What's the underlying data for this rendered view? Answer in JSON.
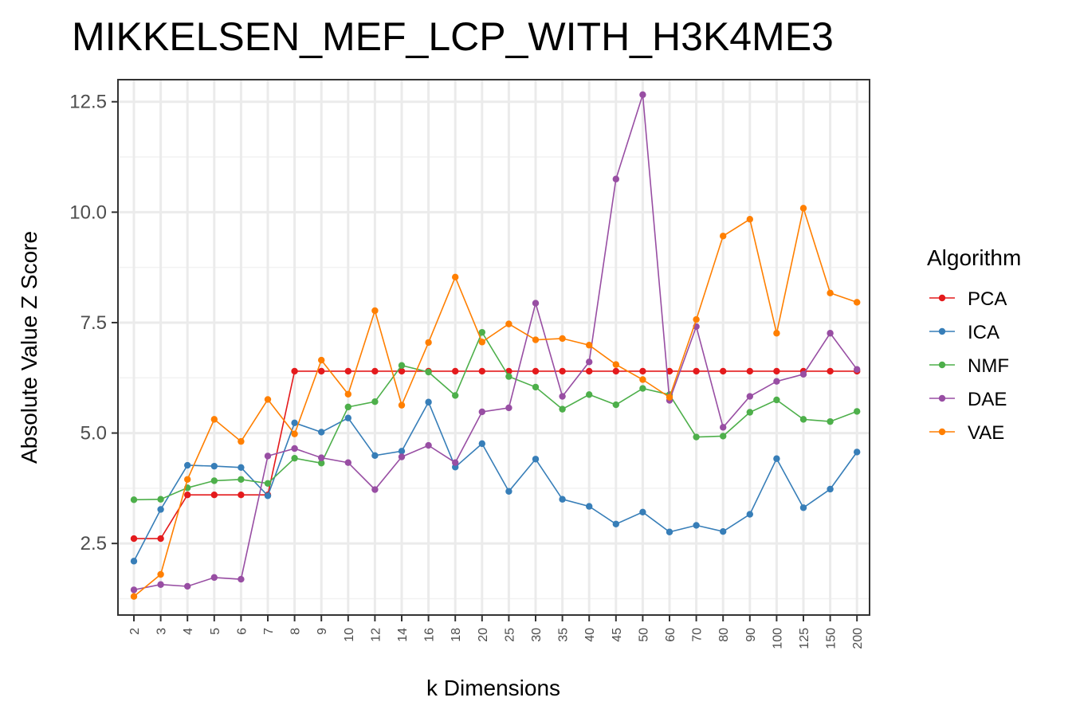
{
  "chart_data": {
    "type": "line",
    "title": "MIKKELSEN_MEF_LCP_WITH_H3K4ME3",
    "xlabel": "k Dimensions",
    "ylabel": "Absolute Value Z Score",
    "categories": [
      "2",
      "3",
      "4",
      "5",
      "6",
      "7",
      "8",
      "9",
      "10",
      "12",
      "14",
      "16",
      "18",
      "20",
      "25",
      "30",
      "35",
      "40",
      "45",
      "50",
      "60",
      "70",
      "80",
      "90",
      "100",
      "125",
      "150",
      "200"
    ],
    "yticks": [
      "2.5",
      "5.0",
      "7.5",
      "10.0",
      "12.5"
    ],
    "ytick_values": [
      2.5,
      5.0,
      7.5,
      10.0,
      12.5
    ],
    "ylim": [
      0.88,
      13.0
    ],
    "grid": true,
    "legend": {
      "title": "Algorithm",
      "position": "right"
    },
    "series": [
      {
        "name": "PCA",
        "color": "#E41A1C",
        "values": [
          2.61,
          2.61,
          3.6,
          3.6,
          3.6,
          3.6,
          6.4,
          6.4,
          6.4,
          6.4,
          6.4,
          6.4,
          6.4,
          6.4,
          6.4,
          6.4,
          6.4,
          6.4,
          6.4,
          6.4,
          6.4,
          6.4,
          6.4,
          6.4,
          6.4,
          6.4,
          6.4,
          6.4
        ]
      },
      {
        "name": "ICA",
        "color": "#377EB8",
        "values": [
          2.1,
          3.27,
          4.27,
          4.25,
          4.22,
          3.58,
          5.23,
          5.02,
          5.34,
          4.49,
          4.59,
          5.7,
          4.23,
          4.76,
          3.68,
          4.41,
          3.5,
          3.34,
          2.94,
          3.21,
          2.76,
          2.91,
          2.77,
          3.16,
          4.42,
          3.31,
          3.73,
          4.57
        ]
      },
      {
        "name": "NMF",
        "color": "#4DAF4A",
        "values": [
          3.49,
          3.5,
          3.76,
          3.92,
          3.95,
          3.86,
          4.43,
          4.32,
          5.59,
          5.71,
          6.53,
          6.38,
          5.85,
          7.28,
          6.28,
          6.04,
          5.54,
          5.87,
          5.64,
          6.01,
          5.87,
          4.91,
          4.93,
          5.47,
          5.75,
          5.31,
          5.26,
          5.49
        ]
      },
      {
        "name": "DAE",
        "color": "#984EA3",
        "values": [
          1.45,
          1.57,
          1.53,
          1.73,
          1.69,
          4.48,
          4.65,
          4.44,
          4.33,
          3.72,
          4.46,
          4.72,
          4.33,
          5.48,
          5.57,
          7.94,
          5.83,
          6.61,
          10.75,
          12.66,
          5.74,
          7.41,
          5.13,
          5.83,
          6.17,
          6.33,
          7.26,
          6.44
        ]
      },
      {
        "name": "VAE",
        "color": "#FF7F00",
        "values": [
          1.3,
          1.8,
          3.95,
          5.31,
          4.81,
          5.76,
          4.98,
          6.65,
          5.88,
          7.77,
          5.63,
          7.05,
          8.53,
          7.06,
          7.47,
          7.11,
          7.14,
          6.99,
          6.55,
          6.21,
          5.81,
          7.57,
          9.46,
          9.84,
          7.26,
          10.09,
          8.17,
          7.96
        ]
      }
    ]
  }
}
